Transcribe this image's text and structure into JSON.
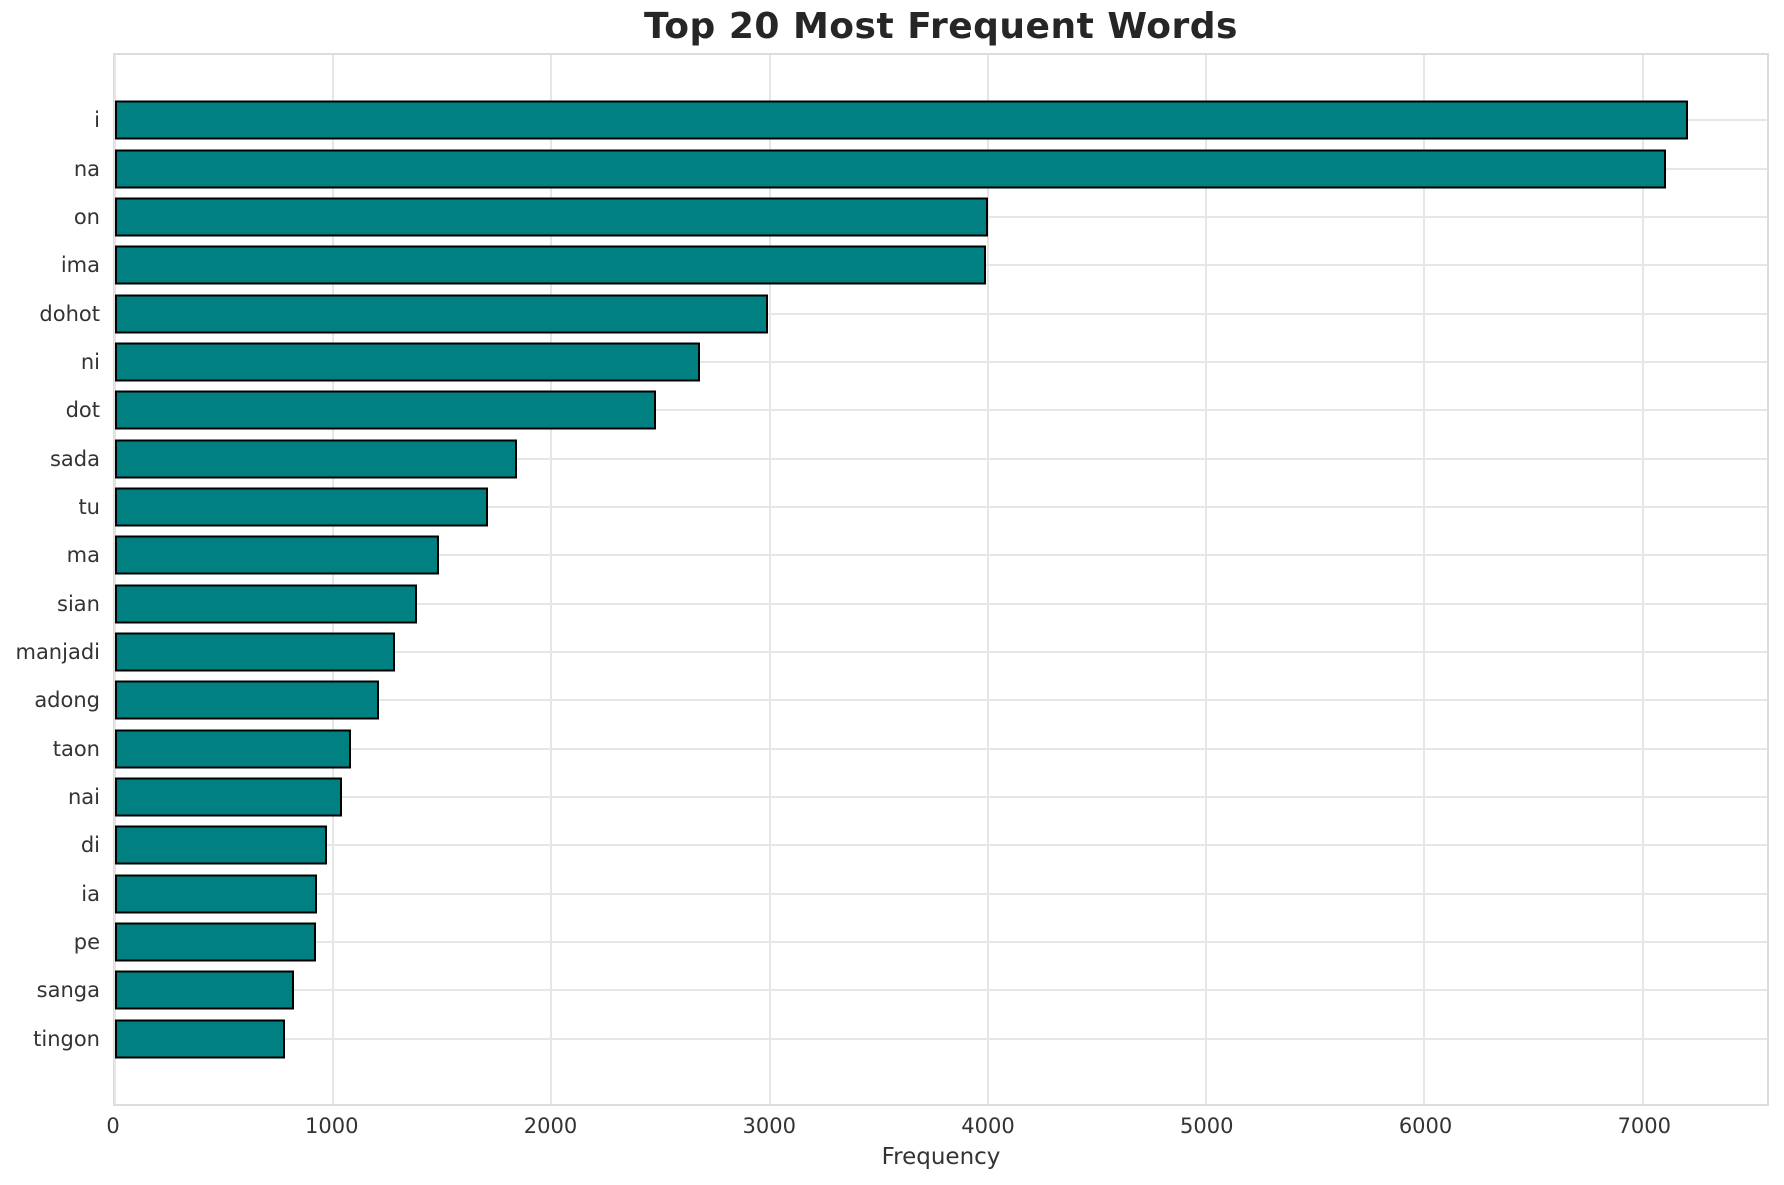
{
  "chart_data": {
    "type": "bar",
    "orientation": "horizontal",
    "title": "Top 20 Most Frequent Words",
    "xlabel": "Frequency",
    "ylabel": "",
    "categories": [
      "i",
      "na",
      "on",
      "ima",
      "dohot",
      "ni",
      "dot",
      "sada",
      "tu",
      "ma",
      "sian",
      "manjadi",
      "adong",
      "taon",
      "nai",
      "di",
      "ia",
      "pe",
      "sanga",
      "tingon"
    ],
    "values": [
      7210,
      7105,
      4000,
      3990,
      2990,
      2680,
      2480,
      1840,
      1710,
      1485,
      1385,
      1285,
      1210,
      1080,
      1040,
      970,
      925,
      920,
      820,
      780
    ],
    "xlim": [
      0,
      7570
    ],
    "xticks": [
      0,
      1000,
      2000,
      3000,
      4000,
      5000,
      6000,
      7000
    ],
    "grid": true,
    "legend": "none",
    "colors": {
      "bar": "#008080",
      "bar_edge": "#000000",
      "grid": "#e6e6e6",
      "spine": "#dcdcdc",
      "text": "#333333",
      "title": "#262626",
      "background": "#ffffff"
    }
  }
}
